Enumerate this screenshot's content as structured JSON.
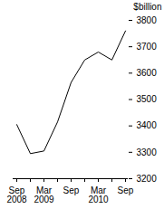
{
  "chart_data": {
    "type": "line",
    "y_label": "$billion",
    "categories": [
      "Sep\n2008",
      null,
      "Mar\n2009",
      null,
      "Sep",
      null,
      "Mar\n2010",
      null,
      "Sep"
    ],
    "values": [
      3405,
      3295,
      3305,
      3415,
      3565,
      3650,
      3680,
      3650,
      3760
    ],
    "color": "#000000",
    "ylim": [
      3200,
      3800
    ],
    "yticks": [
      3200,
      3300,
      3400,
      3500,
      3600,
      3700,
      3800
    ],
    "grid": false
  }
}
